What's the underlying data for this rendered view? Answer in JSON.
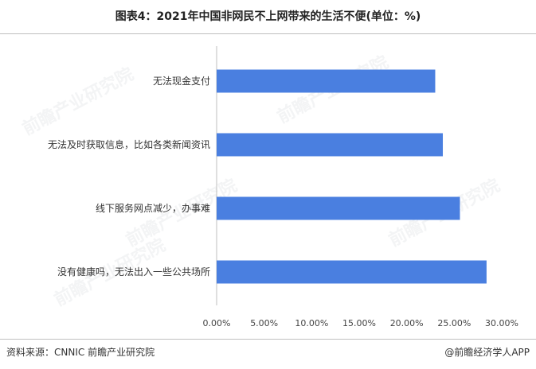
{
  "title": "图表4：2021年中国非网民不上网带来的生活不便(单位：%)",
  "footer": {
    "source": "资料来源：CNNIC 前瞻产业研究院",
    "brand": "@前瞻经济学人APP"
  },
  "watermark": {
    "text": "前瞻产业研究院"
  },
  "colors": {
    "bar": "#4a7fe0",
    "axis": "#bfbfbf"
  },
  "chart_data": {
    "type": "bar",
    "orientation": "horizontal",
    "categories": [
      "无法现金支付",
      "无法及时获取信息，比如各类新闻资讯",
      "线下服务网点减少，办事难",
      "没有健康吗，无法出入一些公共场所"
    ],
    "values": [
      23.0,
      23.8,
      25.6,
      28.4
    ],
    "xlim": [
      0,
      30
    ],
    "xticks": [
      "0.00%",
      "5.00%",
      "10.00%",
      "15.00%",
      "20.00%",
      "25.00%",
      "30.00%"
    ],
    "grid": false,
    "legend": "none"
  }
}
